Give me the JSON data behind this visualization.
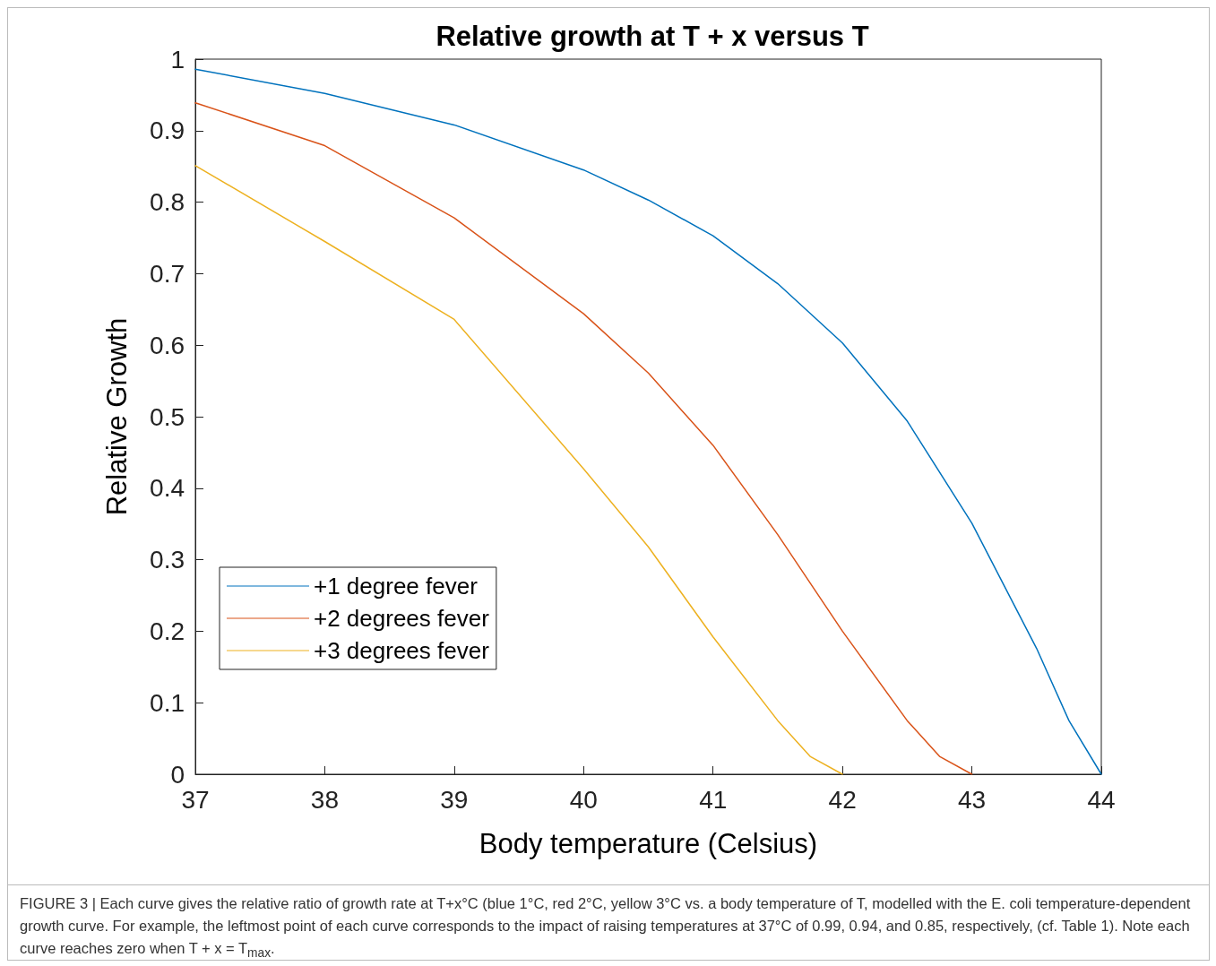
{
  "chart_data": {
    "type": "line",
    "title": "Relative growth at T + x versus T",
    "xlabel": "Body temperature (Celsius)",
    "ylabel": "Relative Growth",
    "annotations": [
      "FIGURE 3 | Each curve gives the relative ratio of growth rate at T+x°C (blue 1°C, red 2°C, yellow 3°C vs. a body temperature of T, modelled with the E. coli temperature-dependent growth curve. For example, the leftmost point of each curve corresponds to the impact of raising temperatures at 37°C of 0.99, 0.94, and 0.85, respectively, (cf. Table 1). Note each curve reaches zero when T + x = T$_{max}$."
    ],
    "series": [
      {
        "name": "+1 degree fever",
        "color": "#0072bd",
        "x": [
          37,
          38,
          39,
          40,
          40.5,
          41,
          41.5,
          42,
          42.5,
          43,
          43.5,
          43.75,
          44
        ],
        "values": [
          0.986,
          0.952,
          0.908,
          0.845,
          0.803,
          0.753,
          0.686,
          0.603,
          0.494,
          0.351,
          0.176,
          0.075,
          0
        ]
      },
      {
        "name": "+2 degrees fever",
        "color": "#d95319",
        "x": [
          37,
          38,
          39,
          40,
          40.5,
          41,
          41.5,
          42,
          42.5,
          42.75,
          43
        ],
        "values": [
          0.939,
          0.879,
          0.778,
          0.644,
          0.561,
          0.46,
          0.335,
          0.2,
          0.075,
          0.025,
          0
        ]
      },
      {
        "name": "+3 degrees fever",
        "color": "#edb120",
        "x": [
          37,
          38,
          39,
          40,
          40.5,
          41,
          41.5,
          41.75,
          42
        ],
        "values": [
          0.851,
          0.745,
          0.636,
          0.427,
          0.318,
          0.192,
          0.075,
          0.025,
          0
        ]
      }
    ],
    "xlim": [
      37,
      44
    ],
    "xticks": [
      37,
      38,
      39,
      40,
      41,
      42,
      43,
      44
    ],
    "ylim": [
      0,
      1
    ],
    "yticks": [
      0,
      0.1,
      0.2,
      0.3,
      0.4,
      0.5,
      0.6,
      0.7,
      0.8,
      0.9,
      1
    ],
    "grid": false,
    "legend": "bottom left",
    "marker": "none",
    "line_style": "solid"
  }
}
